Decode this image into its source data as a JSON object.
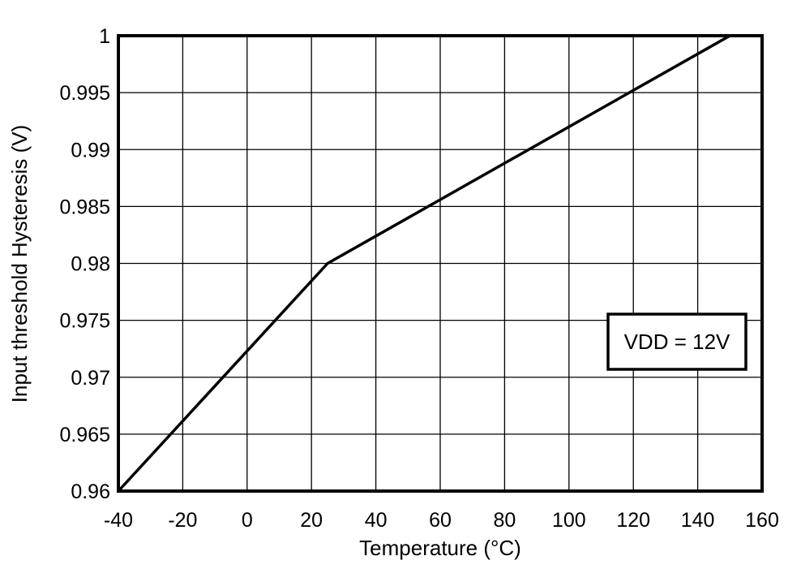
{
  "chart_data": {
    "type": "line",
    "title": "",
    "xlabel": "Temperature (°C)",
    "ylabel": "Input threshold Hysteresis (V)",
    "xlim": [
      -40,
      160
    ],
    "ylim": [
      0.96,
      1.0
    ],
    "grid": true,
    "x_ticks": [
      "-40",
      "-20",
      "0",
      "20",
      "40",
      "60",
      "80",
      "100",
      "120",
      "140",
      "160"
    ],
    "y_ticks": [
      "0.96",
      "0.965",
      "0.97",
      "0.975",
      "0.98",
      "0.985",
      "0.99",
      "0.995",
      "1"
    ],
    "series": [
      {
        "name": "VDD = 12V",
        "x": [
          -40,
          25,
          150
        ],
        "y": [
          0.96,
          0.98,
          1.0
        ],
        "color": "#000000"
      }
    ],
    "annotations": [
      {
        "text": "VDD = 12V",
        "x": 132,
        "y": 0.9773,
        "boxed": true
      }
    ],
    "legend": "none"
  }
}
